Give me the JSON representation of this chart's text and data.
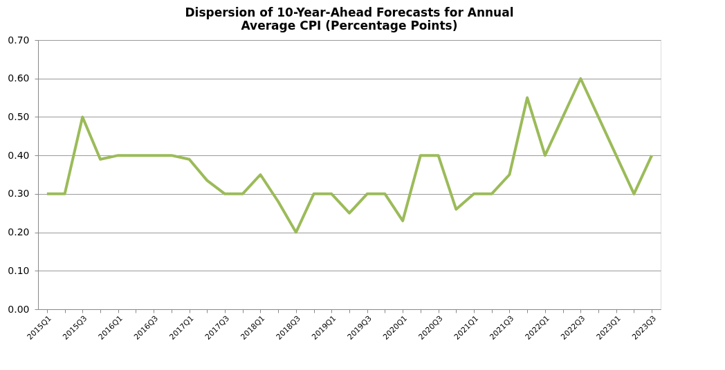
{
  "chart_data": {
    "type": "line",
    "title": [
      "Dispersion of 10-Year-Ahead Forecasts for Annual",
      "Average CPI (Percentage Points)"
    ],
    "categories": [
      "2015Q1",
      null,
      "2015Q3",
      null,
      "2016Q1",
      null,
      "2016Q3",
      null,
      "2017Q1",
      null,
      "2017Q3",
      null,
      "2018Q1",
      null,
      "2018Q3",
      null,
      "2019Q1",
      null,
      "2019Q3",
      null,
      "2020Q1",
      null,
      "2020Q3",
      null,
      "2021Q1",
      null,
      "2021Q3",
      null,
      "2022Q1",
      null,
      "2022Q3",
      null,
      "2023Q1",
      null,
      "2023Q3"
    ],
    "series": [
      {
        "color": "#9bbb59",
        "values": [
          0.3,
          0.3,
          0.5,
          0.39,
          0.4,
          0.4,
          0.4,
          0.4,
          0.39,
          0.335,
          0.3,
          0.3,
          0.35,
          0.28,
          0.2,
          0.3,
          0.3,
          0.25,
          0.3,
          0.3,
          0.23,
          0.4,
          0.4,
          0.26,
          0.3,
          0.3,
          0.35,
          0.55,
          0.4,
          0.5,
          0.6,
          0.5,
          0.4,
          0.3,
          0.4
        ]
      }
    ],
    "ylim": [
      0,
      0.7
    ],
    "yticks": [
      {
        "value": 0,
        "label": "0.00"
      },
      {
        "value": 0.1,
        "label": "0.10"
      },
      {
        "value": 0.2,
        "label": "0.20"
      },
      {
        "value": 0.3,
        "label": "0.30"
      },
      {
        "value": 0.4,
        "label": "0.40"
      },
      {
        "value": 0.5,
        "label": "0.50"
      },
      {
        "value": 0.6,
        "label": "0.60"
      },
      {
        "value": 0.7,
        "label": "0.70"
      }
    ],
    "grid": "y",
    "marker": "none",
    "line_style": "solid",
    "legend": false
  }
}
